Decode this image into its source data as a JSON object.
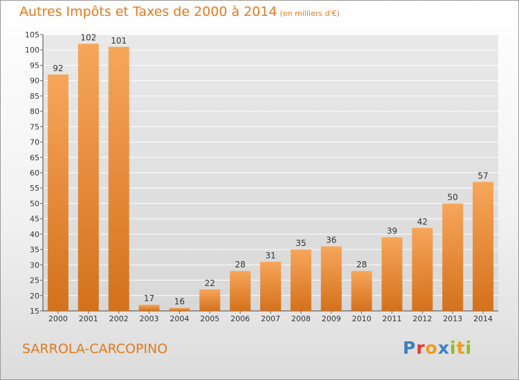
{
  "chart_data": {
    "type": "bar",
    "title": "Autres Impôts et Taxes de 2000 à 2014",
    "subtitle": "(en milliers d'€)",
    "categories": [
      "2000",
      "2001",
      "2002",
      "2003",
      "2004",
      "2005",
      "2006",
      "2007",
      "2008",
      "2009",
      "2010",
      "2011",
      "2012",
      "2013",
      "2014"
    ],
    "values": [
      92,
      102,
      101,
      17,
      16,
      22,
      28,
      31,
      35,
      36,
      28,
      39,
      42,
      50,
      57
    ],
    "ylim": [
      15,
      105
    ],
    "yticks": [
      15,
      20,
      25,
      30,
      35,
      40,
      45,
      50,
      55,
      60,
      65,
      70,
      75,
      80,
      85,
      90,
      95,
      100,
      105
    ],
    "grid": true,
    "colors": {
      "bar_light": "#f7a65a",
      "bar_dark": "#d4711c",
      "text": "#e07a1e",
      "grid": "#ffffff"
    }
  },
  "footer": {
    "commune": "SARROLA-CARCOPINO"
  },
  "logo": {
    "letters": [
      {
        "char": "P",
        "color": "#3d7fc4"
      },
      {
        "char": "r",
        "color": "#e8352b"
      },
      {
        "char": "o",
        "color": "#f39a1e"
      },
      {
        "char": "x",
        "color": "#3d7fc4"
      },
      {
        "char": "i",
        "color": "#8cbf26"
      },
      {
        "char": "t",
        "color": "#f39a1e"
      },
      {
        "char": "i",
        "color": "#8cbf26"
      }
    ]
  }
}
